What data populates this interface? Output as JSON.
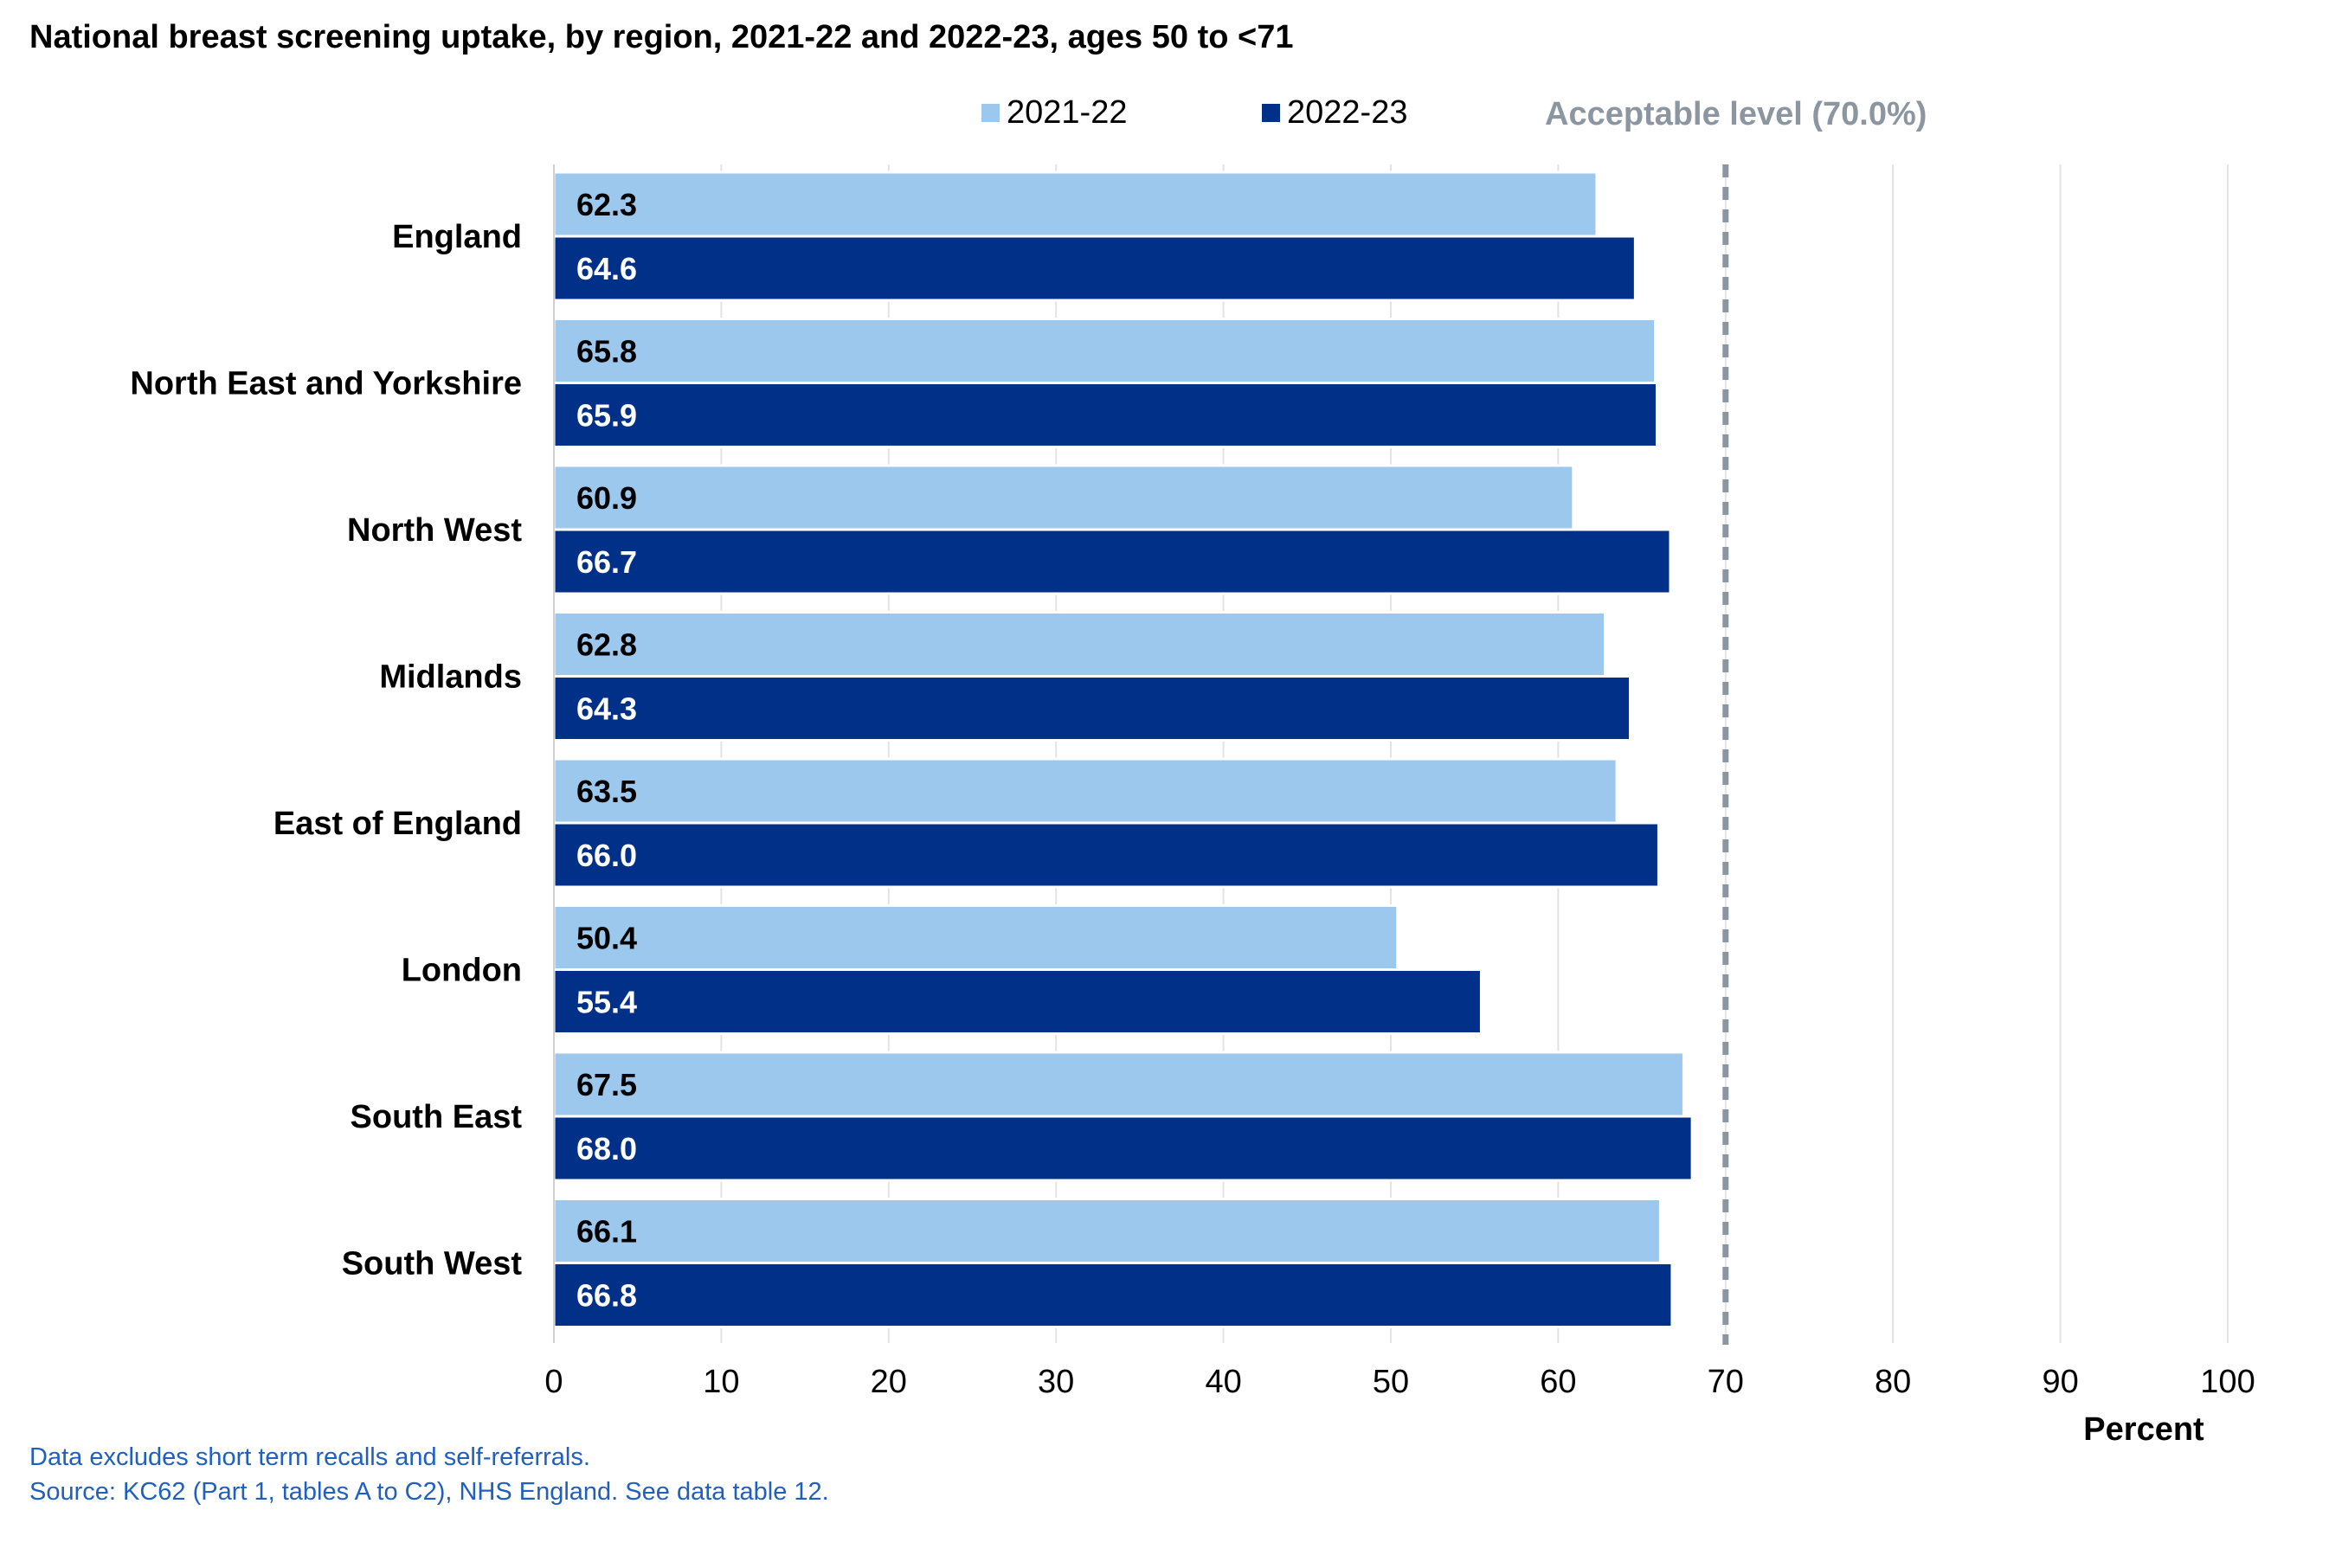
{
  "chart_data": {
    "type": "bar",
    "orientation": "horizontal",
    "title": "National breast screening uptake, by region, 2021-22 and 2022-23, ages 50 to <71",
    "categories": [
      "England",
      "North East and Yorkshire",
      "North West",
      "Midlands",
      "East of England",
      "London",
      "South East",
      "South West"
    ],
    "series": [
      {
        "name": "2021-22",
        "color": "#9dc8ed",
        "label_color": "#000000",
        "values": [
          62.3,
          65.8,
          60.9,
          62.8,
          63.5,
          50.4,
          67.5,
          66.1
        ],
        "labels": [
          "62.3",
          "65.8",
          "60.9",
          "62.8",
          "63.5",
          "50.4",
          "67.5",
          "66.1"
        ]
      },
      {
        "name": "2022-23",
        "color": "#003087",
        "label_color": "#ffffff",
        "values": [
          64.6,
          65.9,
          66.7,
          64.3,
          66.0,
          55.4,
          68.0,
          66.8
        ],
        "labels": [
          "64.6",
          "65.9",
          "66.7",
          "64.3",
          "66.0",
          "55.4",
          "68.0",
          "66.8"
        ]
      }
    ],
    "reference_line": {
      "label": "Acceptable level (70.0%)",
      "value": 70,
      "color": "#8c96a0",
      "style": "dashed"
    },
    "xlim": [
      0,
      100
    ],
    "xticks": [
      0,
      10,
      20,
      30,
      40,
      50,
      60,
      70,
      80,
      90,
      100
    ],
    "xtick_labels": [
      "0",
      "10",
      "20",
      "30",
      "40",
      "50",
      "60",
      "70",
      "80",
      "90",
      "100"
    ],
    "xlabel": "Percent",
    "ylabel": "",
    "grid": "vertical",
    "legend_position": "top"
  },
  "footnotes": [
    "Data excludes short term recalls and self-referrals.",
    "Source: KC62 (Part 1, tables A to C2), NHS England. See data table 12."
  ]
}
